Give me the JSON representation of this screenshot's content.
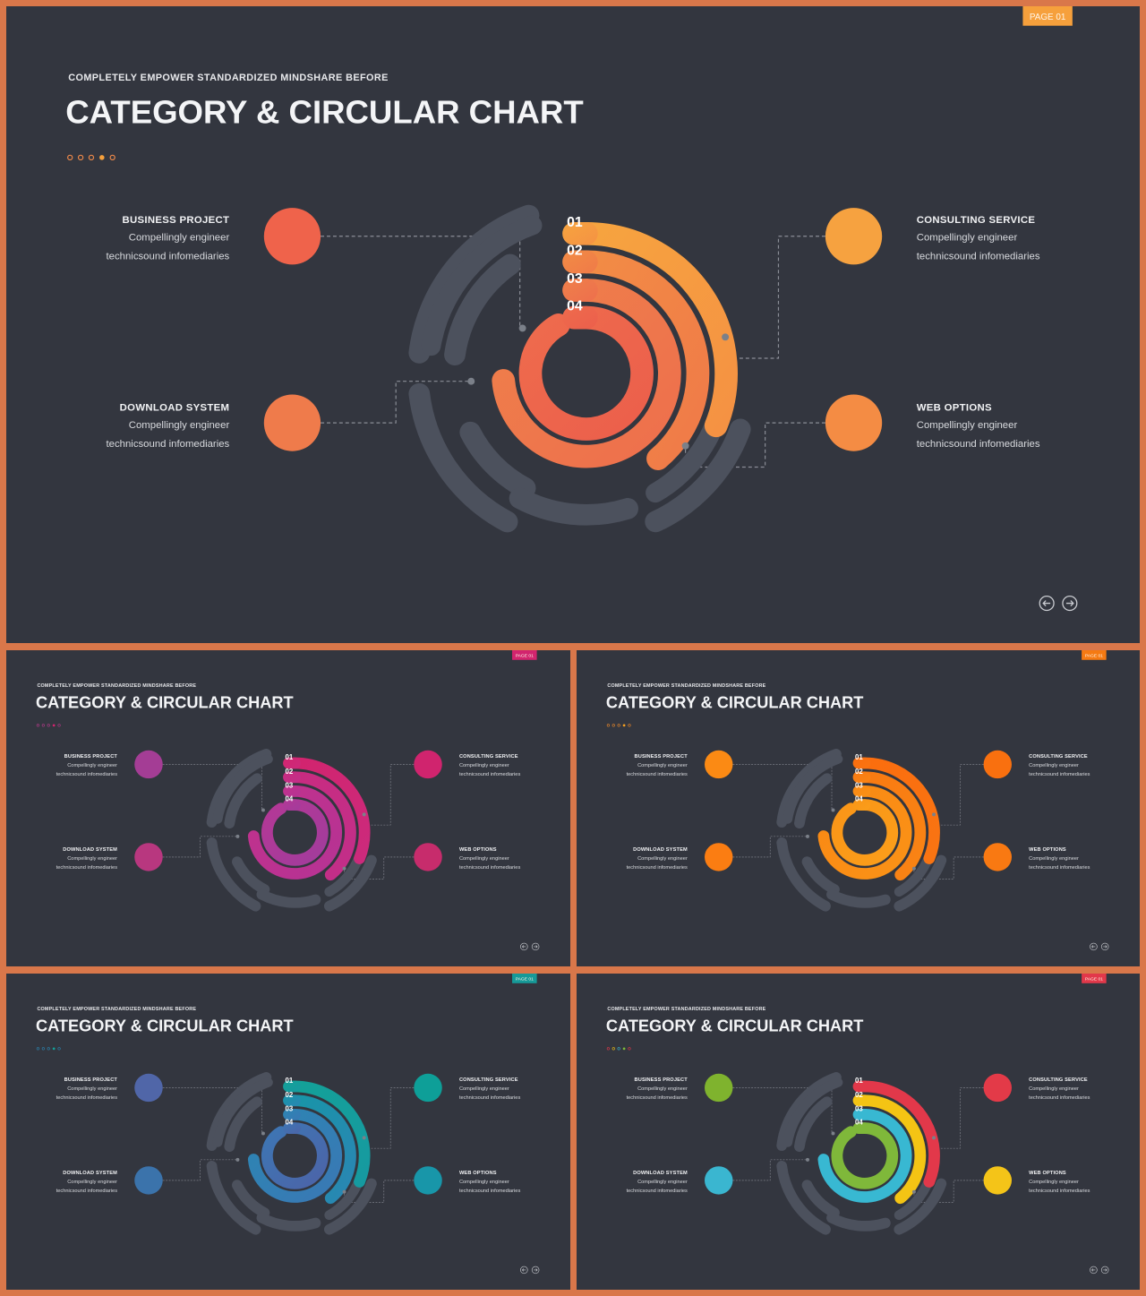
{
  "slides": [
    {
      "page_label": "PAGE 01",
      "subtitle": "COMPLETELY EMPOWER STANDARDIZED MINDSHARE BEFORE",
      "title": "CATEGORY & CIRCULAR CHART",
      "colors": {
        "badge": "#f6a03c",
        "ring1": [
          "#f6a43f",
          "#f59243"
        ],
        "ring2": [
          "#f28c45",
          "#f07a48"
        ],
        "ring3": [
          "#ef804a",
          "#ee6f4d"
        ],
        "ring4": [
          "#ee6b4d",
          "#ec5f4b"
        ],
        "business": "#ef634b",
        "consulting": "#f6a240",
        "download": "#ef7b4b",
        "web": "#f48c44",
        "dots": [
          "#f08a4a",
          "#f08a4a",
          "#f08a4a",
          "#f6a03c",
          "#f08a4a"
        ]
      },
      "ring_numbers": [
        "01",
        "02",
        "03",
        "04"
      ],
      "categories": {
        "business": {
          "title": "BUSINESS PROJECT",
          "line1": "Compellingly engineer",
          "line2": "technicsound infomediaries"
        },
        "download": {
          "title": "DOWNLOAD SYSTEM",
          "line1": "Compellingly engineer",
          "line2": "technicsound infomediaries"
        },
        "consulting": {
          "title": "CONSULTING SERVICE",
          "line1": "Compellingly engineer",
          "line2": "technicsound infomediaries"
        },
        "web": {
          "title": "WEB OPTIONS",
          "line1": "Compellingly engineer",
          "line2": "technicsound infomediaries"
        }
      },
      "nav": {
        "prev_icon": "arrow-left-icon",
        "next_icon": "arrow-right-icon"
      }
    },
    {
      "page_label": "PAGE 01",
      "subtitle": "COMPLETELY EMPOWER STANDARDIZED MINDSHARE BEFORE",
      "title": "CATEGORY & CIRCULAR CHART",
      "colors": {
        "badge": "#d2246e",
        "ring1": [
          "#d2246e",
          "#cc2a7c"
        ],
        "ring2": [
          "#c92b80",
          "#c22f89"
        ],
        "ring3": [
          "#c1318c",
          "#b63394"
        ],
        "ring4": [
          "#b43896",
          "#a23c9c"
        ],
        "business": "#a43d95",
        "consulting": "#d0246e",
        "download": "#b8377f",
        "web": "#c72c6c",
        "dots": [
          "#b73a8a",
          "#b73a8a",
          "#b73a8a",
          "#d2246e",
          "#b73a8a"
        ]
      },
      "ring_numbers": [
        "01",
        "02",
        "03",
        "04"
      ],
      "categories": {
        "business": {
          "title": "BUSINESS PROJECT",
          "line1": "Compellingly engineer",
          "line2": "technicsound infomediaries"
        },
        "download": {
          "title": "DOWNLOAD SYSTEM",
          "line1": "Compellingly engineer",
          "line2": "technicsound infomediaries"
        },
        "consulting": {
          "title": "CONSULTING SERVICE",
          "line1": "Compellingly engineer",
          "line2": "technicsound infomediaries"
        },
        "web": {
          "title": "WEB OPTIONS",
          "line1": "Compellingly engineer",
          "line2": "technicsound infomediaries"
        }
      },
      "nav": {
        "prev_icon": "arrow-left-icon",
        "next_icon": "arrow-right-icon"
      }
    },
    {
      "page_label": "PAGE 01",
      "subtitle": "COMPLETELY EMPOWER STANDARDIZED MINDSHARE BEFORE",
      "title": "CATEGORY & CIRCULAR CHART",
      "colors": {
        "badge": "#f57a12",
        "ring1": [
          "#fb6d0e",
          "#f97412"
        ],
        "ring2": [
          "#f97a12",
          "#f98414"
        ],
        "ring3": [
          "#f98814",
          "#fa9216"
        ],
        "ring4": [
          "#fa9517",
          "#fb9e1a"
        ],
        "business": "#fb8a14",
        "consulting": "#f9700f",
        "download": "#fb7d12",
        "web": "#f97912",
        "dots": [
          "#f08a2a",
          "#f08a2a",
          "#f08a2a",
          "#f7a020",
          "#f08a2a"
        ]
      },
      "ring_numbers": [
        "01",
        "02",
        "03",
        "04"
      ],
      "categories": {
        "business": {
          "title": "BUSINESS PROJECT",
          "line1": "Compellingly engineer",
          "line2": "technicsound infomediaries"
        },
        "download": {
          "title": "DOWNLOAD SYSTEM",
          "line1": "Compellingly engineer",
          "line2": "technicsound infomediaries"
        },
        "consulting": {
          "title": "CONSULTING SERVICE",
          "line1": "Compellingly engineer",
          "line2": "technicsound infomediaries"
        },
        "web": {
          "title": "WEB OPTIONS",
          "line1": "Compellingly engineer",
          "line2": "technicsound infomediaries"
        }
      },
      "nav": {
        "prev_icon": "arrow-left-icon",
        "next_icon": "arrow-right-icon"
      }
    },
    {
      "page_label": "PAGE 01",
      "subtitle": "COMPLETELY EMPOWER STANDARDIZED MINDSHARE BEFORE",
      "title": "CATEGORY & CIRCULAR CHART",
      "colors": {
        "badge": "#169a98",
        "ring1": [
          "#14a198",
          "#169aa0"
        ],
        "ring2": [
          "#1895a8",
          "#2a86b3"
        ],
        "ring3": [
          "#2b86b3",
          "#3a78b4"
        ],
        "ring4": [
          "#3d76b4",
          "#4c64a8"
        ],
        "business": "#5066a8",
        "consulting": "#0e9f98",
        "download": "#3b73ab",
        "web": "#1896a9",
        "dots": [
          "#2a86b3",
          "#2a86b3",
          "#2a86b3",
          "#14a198",
          "#2a86b3"
        ]
      },
      "ring_numbers": [
        "01",
        "02",
        "03",
        "04"
      ],
      "categories": {
        "business": {
          "title": "BUSINESS PROJECT",
          "line1": "Compellingly engineer",
          "line2": "technicsound infomediaries"
        },
        "download": {
          "title": "DOWNLOAD SYSTEM",
          "line1": "Compellingly engineer",
          "line2": "technicsound infomediaries"
        },
        "consulting": {
          "title": "CONSULTING SERVICE",
          "line1": "Compellingly engineer",
          "line2": "technicsound infomediaries"
        },
        "web": {
          "title": "WEB OPTIONS",
          "line1": "Compellingly engineer",
          "line2": "technicsound infomediaries"
        }
      },
      "nav": {
        "prev_icon": "arrow-left-icon",
        "next_icon": "arrow-right-icon"
      }
    },
    {
      "page_label": "PAGE 01",
      "subtitle": "COMPLETELY EMPOWER STANDARDIZED MINDSHARE BEFORE",
      "title": "CATEGORY & CIRCULAR CHART",
      "colors": {
        "badge": "#e2384a",
        "ring1": [
          "#e2384a",
          "#e2384a"
        ],
        "ring2": [
          "#f4c414",
          "#f4c414"
        ],
        "ring3": [
          "#38b8d2",
          "#38b8d2"
        ],
        "ring4": [
          "#7fb83a",
          "#7fb83a"
        ],
        "business": "#7fb32e",
        "consulting": "#e33a48",
        "download": "#3ab6d0",
        "web": "#f4c418",
        "dots": [
          "#e2384a",
          "#f4c414",
          "#38b8d2",
          "#7fb83a",
          "#e2384a"
        ]
      },
      "ring_numbers": [
        "01",
        "02",
        "03",
        "04"
      ],
      "categories": {
        "business": {
          "title": "BUSINESS PROJECT",
          "line1": "Compellingly engineer",
          "line2": "technicsound infomediaries"
        },
        "download": {
          "title": "DOWNLOAD SYSTEM",
          "line1": "Compellingly engineer",
          "line2": "technicsound infomediaries"
        },
        "consulting": {
          "title": "CONSULTING SERVICE",
          "line1": "Compellingly engineer",
          "line2": "technicsound infomediaries"
        },
        "web": {
          "title": "WEB OPTIONS",
          "line1": "Compellingly engineer",
          "line2": "technicsound infomediaries"
        }
      },
      "nav": {
        "prev_icon": "arrow-left-icon",
        "next_icon": "arrow-right-icon"
      }
    }
  ]
}
